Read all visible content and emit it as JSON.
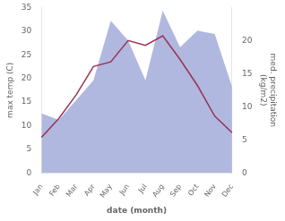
{
  "chart_data": {
    "type": "line",
    "categories": [
      "Jan",
      "Feb",
      "Mar",
      "Apr",
      "May",
      "Jun",
      "Jul",
      "Aug",
      "Sep",
      "Oct",
      "Nov",
      "Dec"
    ],
    "xlabel": "date (month)",
    "ylabel": "max temp (C)",
    "y2label": "med. precipitation\n(kg/m2)",
    "ylim": [
      0,
      35
    ],
    "yticks": [
      0,
      5,
      10,
      15,
      20,
      25,
      30,
      35
    ],
    "y2lim": [
      0,
      25
    ],
    "y2ticks": [
      0,
      5,
      10,
      15,
      20
    ],
    "grid": false,
    "series": [
      {
        "type": "area",
        "color": "#b0b8e0",
        "axis": "y2",
        "values": [
          9.0,
          8.0,
          11.0,
          14.0,
          23.0,
          20.0,
          14.0,
          24.5,
          19.0,
          21.5,
          21.0,
          13.0
        ]
      },
      {
        "type": "line",
        "color": "#993355",
        "values": [
          7.5,
          11.5,
          16.5,
          22.5,
          23.5,
          28.0,
          27.0,
          29.0,
          24.0,
          18.5,
          12.0,
          8.5
        ]
      }
    ]
  }
}
